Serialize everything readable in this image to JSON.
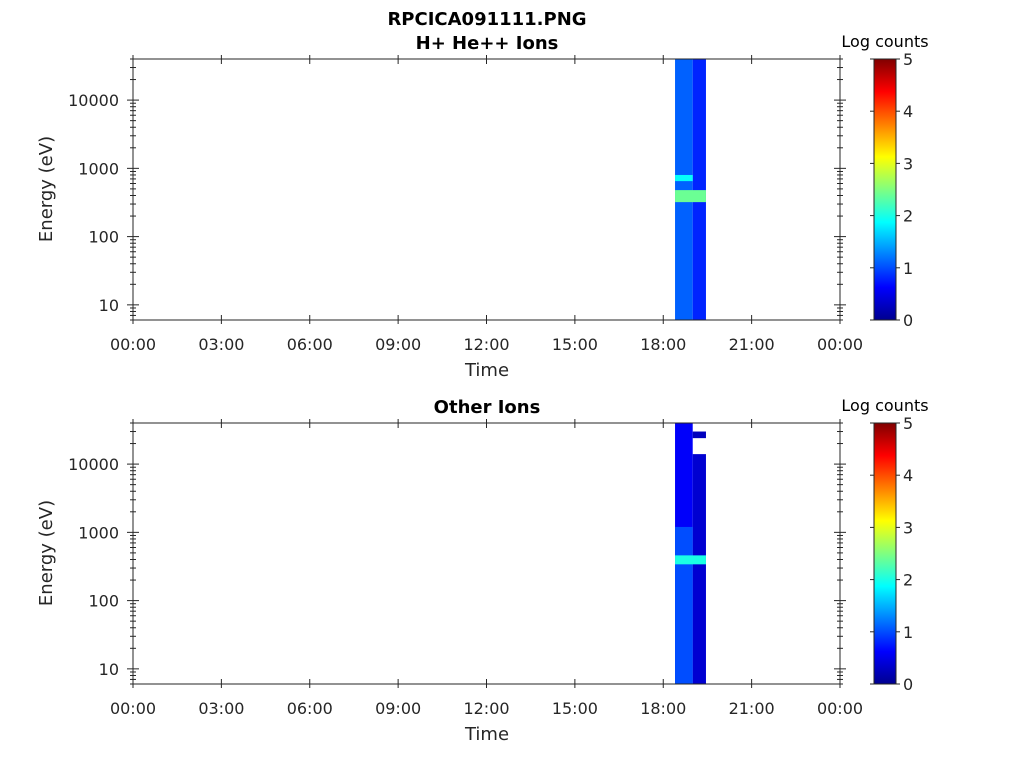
{
  "figure_title": "RPCICA091111.PNG",
  "chart_data": [
    {
      "type": "heatmap",
      "title": "H+ He++ Ions",
      "xlabel": "Time",
      "ylabel": "Energy (eV)",
      "x_ticks": [
        "00:00",
        "03:00",
        "06:00",
        "09:00",
        "12:00",
        "15:00",
        "18:00",
        "21:00",
        "00:00"
      ],
      "x_range_hours": [
        0,
        24
      ],
      "y_scale": "log",
      "y_ticks": [
        10,
        100,
        1000,
        10000
      ],
      "y_tick_labels": [
        "10",
        "100",
        "1000",
        "10000"
      ],
      "ylim": [
        6,
        40000
      ],
      "colorbar": {
        "label": "Log counts",
        "range": [
          0,
          5
        ],
        "ticks": [
          "0",
          "1",
          "2",
          "3",
          "4",
          "5"
        ],
        "colormap": "jet"
      },
      "data_blocks": [
        {
          "t_start_h": 18.4,
          "t_end_h": 19.0,
          "e_min": 6,
          "e_max": 40000,
          "log_counts": 1.1
        },
        {
          "t_start_h": 19.0,
          "t_end_h": 19.45,
          "e_min": 6,
          "e_max": 40000,
          "log_counts": 0.8
        },
        {
          "t_start_h": 18.4,
          "t_end_h": 19.0,
          "e_min": 650,
          "e_max": 800,
          "log_counts": 1.9
        },
        {
          "t_start_h": 18.4,
          "t_end_h": 19.45,
          "e_min": 320,
          "e_max": 480,
          "log_counts": 2.4
        }
      ]
    },
    {
      "type": "heatmap",
      "title": "Other Ions",
      "xlabel": "Time",
      "ylabel": "Energy (eV)",
      "x_ticks": [
        "00:00",
        "03:00",
        "06:00",
        "09:00",
        "12:00",
        "15:00",
        "18:00",
        "21:00",
        "00:00"
      ],
      "x_range_hours": [
        0,
        24
      ],
      "y_scale": "log",
      "y_ticks": [
        10,
        100,
        1000,
        10000
      ],
      "y_tick_labels": [
        "10",
        "100",
        "1000",
        "10000"
      ],
      "ylim": [
        6,
        40000
      ],
      "colorbar": {
        "label": "Log counts",
        "range": [
          0,
          5
        ],
        "ticks": [
          "0",
          "1",
          "2",
          "3",
          "4",
          "5"
        ],
        "colormap": "jet"
      },
      "data_blocks": [
        {
          "t_start_h": 18.4,
          "t_end_h": 19.0,
          "e_min": 6,
          "e_max": 40000,
          "log_counts": 0.6
        },
        {
          "t_start_h": 19.0,
          "t_end_h": 19.45,
          "e_min": 6,
          "e_max": 14000,
          "log_counts": 0.4
        },
        {
          "t_start_h": 19.0,
          "t_end_h": 19.45,
          "e_min": 24000,
          "e_max": 30000,
          "log_counts": 0.3
        },
        {
          "t_start_h": 18.4,
          "t_end_h": 19.0,
          "e_min": 6,
          "e_max": 1200,
          "log_counts": 1.0
        },
        {
          "t_start_h": 18.4,
          "t_end_h": 19.45,
          "e_min": 340,
          "e_max": 460,
          "log_counts": 2.0
        }
      ]
    }
  ]
}
